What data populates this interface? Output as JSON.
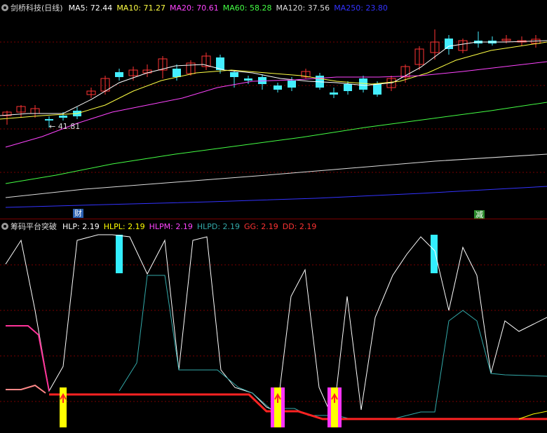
{
  "main": {
    "title": "剑桥科技(日线)",
    "ma": [
      {
        "label": "MA5: 72.44",
        "color": "#ffffff"
      },
      {
        "label": "MA10: 71.27",
        "color": "#ffff44"
      },
      {
        "label": "MA20: 70.61",
        "color": "#ff44ff"
      },
      {
        "label": "MA60: 58.28",
        "color": "#44ff44"
      },
      {
        "label": "MA120: 37.56",
        "color": "#dcdcdc"
      },
      {
        "label": "MA250: 23.80",
        "color": "#3333ff"
      }
    ],
    "low_label": "← 41.81",
    "tag_left": "财",
    "tag_right": "减"
  },
  "indicator": {
    "title": "筹码平台突破",
    "items": [
      {
        "label": "HLP: 2.19",
        "color": "#ffffff"
      },
      {
        "label": "HLPL: 2.19",
        "color": "#ffff00"
      },
      {
        "label": "HLPM: 2.19",
        "color": "#ff44ff"
      },
      {
        "label": "HLPD: 2.19",
        "color": "#33aaaa"
      },
      {
        "label": "GG: 2.19",
        "color": "#ff3333"
      },
      {
        "label": "DD: 2.19",
        "color": "#ff3333"
      }
    ]
  },
  "colors": {
    "up": "#ff3333",
    "down": "#44eeff",
    "grid": "#7a0000"
  }
}
